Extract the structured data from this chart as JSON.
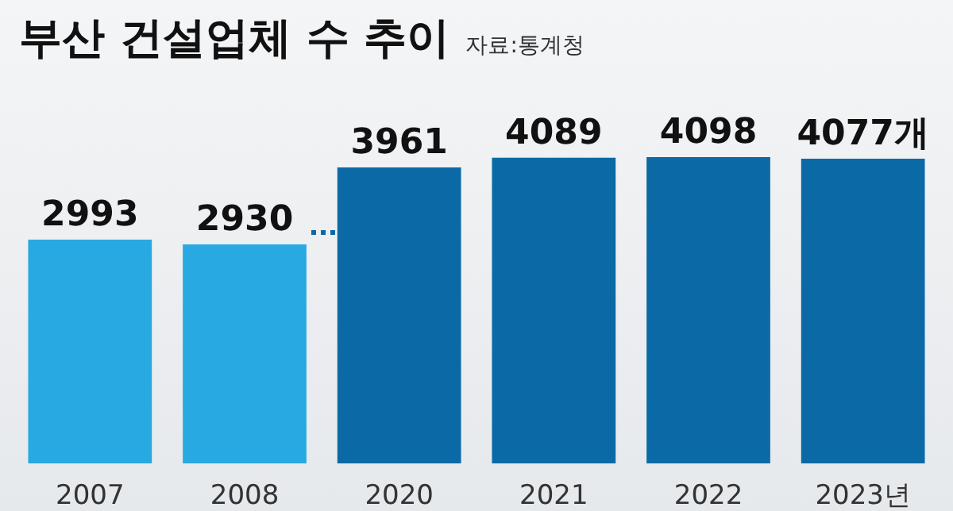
{
  "chart_data": {
    "type": "bar",
    "title": "부산 건설업체 수 추이",
    "annotations": [
      "자료:통계청"
    ],
    "categories": [
      "2007",
      "2008",
      "2020",
      "2021",
      "2022",
      "2023년"
    ],
    "values": [
      2993,
      2930,
      3961,
      4089,
      4098,
      4077
    ],
    "colors": [
      "#29a9e1",
      "#29a9e1",
      "#0b6aa6",
      "#0b6aa6",
      "#0b6aa6",
      "#0b6aa6"
    ],
    "value_labels": [
      "2993",
      "2930",
      "3961",
      "4089",
      "4098",
      "4077개"
    ],
    "grid": false
  }
}
